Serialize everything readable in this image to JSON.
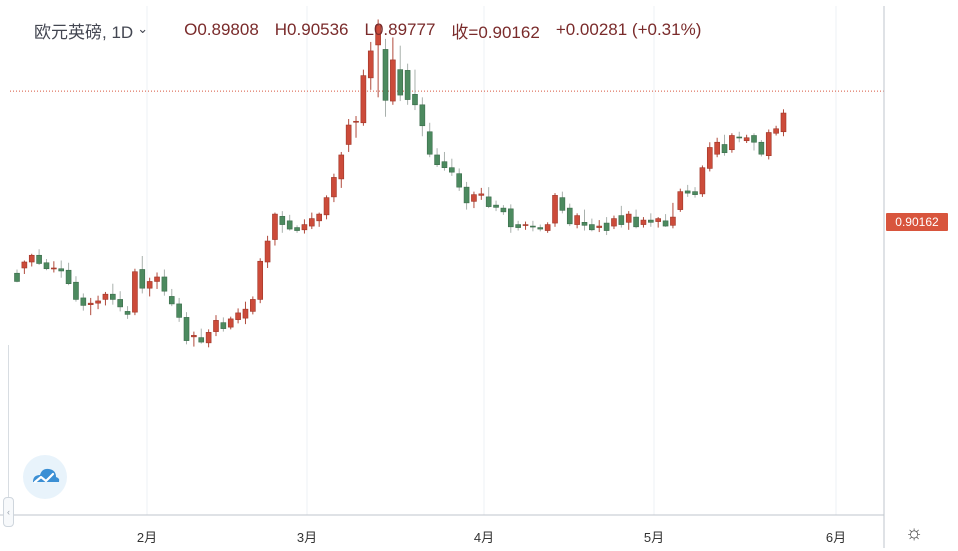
{
  "header": {
    "symbol": "欧元英磅, 1D",
    "open": "O0.89808",
    "high": "H0.90536",
    "low": "L0.89777",
    "close": "收=0.90162",
    "change": "+0.00281 (+0.31%)"
  },
  "price_label": "0.90162",
  "colors": {
    "up": "#cc4b3a",
    "down": "#4c8a5f",
    "grid": "#eef1f4",
    "price_line": "#d8553d",
    "tag": "#d8553d"
  },
  "icons": {
    "logo": "cloud-logo-icon",
    "settings": "gear-icon",
    "chevron": "chevron-down-icon",
    "handle": "chevron-left-icon"
  },
  "chart_data": {
    "type": "candlestick",
    "title": "欧元英磅, 1D",
    "xlabel": "",
    "ylabel": "",
    "x_ticks": [
      "2月",
      "3月",
      "4月",
      "5月",
      "6月"
    ],
    "ylim": [
      0.845,
      0.913
    ],
    "last_price": 0.90162,
    "candles": [
      [
        0.8773,
        0.8778,
        0.8761,
        0.8762
      ],
      [
        0.878,
        0.879,
        0.8772,
        0.8788
      ],
      [
        0.8788,
        0.8799,
        0.8782,
        0.8797
      ],
      [
        0.8797,
        0.8805,
        0.8784,
        0.8786
      ],
      [
        0.8787,
        0.8792,
        0.8777,
        0.8779
      ],
      [
        0.8779,
        0.8789,
        0.8774,
        0.878
      ],
      [
        0.8779,
        0.879,
        0.8767,
        0.8776
      ],
      [
        0.8777,
        0.8787,
        0.8757,
        0.8759
      ],
      [
        0.8761,
        0.8769,
        0.8735,
        0.8738
      ],
      [
        0.874,
        0.8746,
        0.8723,
        0.873
      ],
      [
        0.8731,
        0.874,
        0.8717,
        0.8733
      ],
      [
        0.8733,
        0.8743,
        0.8725,
        0.8736
      ],
      [
        0.8738,
        0.8748,
        0.873,
        0.8745
      ],
      [
        0.8745,
        0.8759,
        0.8731,
        0.8738
      ],
      [
        0.8738,
        0.8749,
        0.8722,
        0.8728
      ],
      [
        0.8722,
        0.8729,
        0.8712,
        0.8718
      ],
      [
        0.8721,
        0.8779,
        0.8717,
        0.8775
      ],
      [
        0.8778,
        0.8796,
        0.8746,
        0.8753
      ],
      [
        0.8753,
        0.8767,
        0.8742,
        0.8762
      ],
      [
        0.8762,
        0.8774,
        0.8752,
        0.8768
      ],
      [
        0.8768,
        0.8778,
        0.8743,
        0.8749
      ],
      [
        0.8742,
        0.8752,
        0.8729,
        0.8732
      ],
      [
        0.8732,
        0.874,
        0.8708,
        0.8714
      ],
      [
        0.8714,
        0.8721,
        0.8678,
        0.8683
      ],
      [
        0.8688,
        0.8695,
        0.8675,
        0.869
      ],
      [
        0.8687,
        0.8699,
        0.8679,
        0.8681
      ],
      [
        0.868,
        0.8698,
        0.8674,
        0.8694
      ],
      [
        0.8695,
        0.8717,
        0.8689,
        0.871
      ],
      [
        0.8707,
        0.8714,
        0.8695,
        0.8699
      ],
      [
        0.8701,
        0.8715,
        0.8698,
        0.8712
      ],
      [
        0.8711,
        0.8726,
        0.8706,
        0.872
      ],
      [
        0.8713,
        0.8735,
        0.8705,
        0.8725
      ],
      [
        0.8722,
        0.8742,
        0.8718,
        0.8738
      ],
      [
        0.8738,
        0.8793,
        0.8733,
        0.8789
      ],
      [
        0.8788,
        0.8823,
        0.878,
        0.8816
      ],
      [
        0.8818,
        0.8854,
        0.881,
        0.8852
      ],
      [
        0.8849,
        0.8856,
        0.8827,
        0.8838
      ],
      [
        0.8843,
        0.8851,
        0.883,
        0.8832
      ],
      [
        0.8834,
        0.8837,
        0.8827,
        0.883
      ],
      [
        0.8831,
        0.8845,
        0.8826,
        0.8838
      ],
      [
        0.8836,
        0.8854,
        0.8832,
        0.8846
      ],
      [
        0.8843,
        0.8854,
        0.8835,
        0.8852
      ],
      [
        0.8851,
        0.8877,
        0.8845,
        0.8874
      ],
      [
        0.8875,
        0.8906,
        0.8868,
        0.8901
      ],
      [
        0.8899,
        0.8935,
        0.8887,
        0.8931
      ],
      [
        0.8945,
        0.8979,
        0.8935,
        0.8971
      ],
      [
        0.8975,
        0.8983,
        0.8954,
        0.8976
      ],
      [
        0.8974,
        0.9045,
        0.897,
        0.9037
      ],
      [
        0.9034,
        0.9082,
        0.9018,
        0.907
      ],
      [
        0.9078,
        0.9112,
        0.9008,
        0.9104
      ],
      [
        0.9072,
        0.9086,
        0.8982,
        0.9004
      ],
      [
        0.9003,
        0.9088,
        0.8998,
        0.9058
      ],
      [
        0.9045,
        0.9077,
        0.9003,
        0.9011
      ],
      [
        0.9044,
        0.9053,
        0.8998,
        0.9005
      ],
      [
        0.9012,
        0.9045,
        0.8991,
        0.8998
      ],
      [
        0.8998,
        0.9008,
        0.8956,
        0.897
      ],
      [
        0.8962,
        0.8974,
        0.8928,
        0.8932
      ],
      [
        0.8931,
        0.894,
        0.8915,
        0.8918
      ],
      [
        0.8922,
        0.8935,
        0.891,
        0.8914
      ],
      [
        0.8914,
        0.8926,
        0.8903,
        0.8908
      ],
      [
        0.8906,
        0.8913,
        0.8883,
        0.8888
      ],
      [
        0.8888,
        0.8895,
        0.8858,
        0.8867
      ],
      [
        0.8869,
        0.8882,
        0.886,
        0.8878
      ],
      [
        0.8877,
        0.8887,
        0.8871,
        0.8879
      ],
      [
        0.8875,
        0.8888,
        0.886,
        0.8862
      ],
      [
        0.8864,
        0.887,
        0.8856,
        0.8861
      ],
      [
        0.886,
        0.8864,
        0.8851,
        0.8855
      ],
      [
        0.8859,
        0.8865,
        0.8827,
        0.8835
      ],
      [
        0.8838,
        0.8843,
        0.883,
        0.8834
      ],
      [
        0.8837,
        0.8842,
        0.8831,
        0.8838
      ],
      [
        0.8836,
        0.8843,
        0.8829,
        0.8835
      ],
      [
        0.8834,
        0.8838,
        0.8829,
        0.8832
      ],
      [
        0.883,
        0.8841,
        0.8827,
        0.8838
      ],
      [
        0.884,
        0.888,
        0.8835,
        0.8877
      ],
      [
        0.8874,
        0.8882,
        0.8853,
        0.8857
      ],
      [
        0.886,
        0.8866,
        0.8836,
        0.8839
      ],
      [
        0.8838,
        0.8853,
        0.8833,
        0.885
      ],
      [
        0.8841,
        0.8858,
        0.883,
        0.8837
      ],
      [
        0.8838,
        0.8846,
        0.8829,
        0.8831
      ],
      [
        0.8834,
        0.8844,
        0.8828,
        0.8836
      ],
      [
        0.884,
        0.8848,
        0.8824,
        0.883
      ],
      [
        0.8836,
        0.885,
        0.8832,
        0.8846
      ],
      [
        0.885,
        0.8863,
        0.8834,
        0.8838
      ],
      [
        0.8841,
        0.8856,
        0.8831,
        0.8852
      ],
      [
        0.8848,
        0.8858,
        0.8833,
        0.8835
      ],
      [
        0.8838,
        0.8848,
        0.8834,
        0.8844
      ],
      [
        0.8844,
        0.8853,
        0.8835,
        0.8841
      ],
      [
        0.8842,
        0.8848,
        0.8834,
        0.8846
      ],
      [
        0.8843,
        0.8852,
        0.8835,
        0.8836
      ],
      [
        0.8837,
        0.8867,
        0.8833,
        0.8848
      ],
      [
        0.8858,
        0.8886,
        0.8855,
        0.8882
      ],
      [
        0.8883,
        0.8891,
        0.8875,
        0.888
      ],
      [
        0.8882,
        0.8888,
        0.8874,
        0.8878
      ],
      [
        0.8879,
        0.8917,
        0.8875,
        0.8914
      ],
      [
        0.8913,
        0.8948,
        0.8909,
        0.8941
      ],
      [
        0.8932,
        0.8954,
        0.8928,
        0.8948
      ],
      [
        0.8945,
        0.8958,
        0.893,
        0.8934
      ],
      [
        0.8938,
        0.896,
        0.8934,
        0.8957
      ],
      [
        0.8955,
        0.8962,
        0.8948,
        0.8954
      ],
      [
        0.895,
        0.8958,
        0.8947,
        0.8954
      ],
      [
        0.8957,
        0.896,
        0.8937,
        0.8948
      ],
      [
        0.8948,
        0.8951,
        0.8929,
        0.8932
      ],
      [
        0.893,
        0.8965,
        0.8925,
        0.8961
      ],
      [
        0.896,
        0.897,
        0.8957,
        0.8966
      ],
      [
        0.8962,
        0.8992,
        0.8956,
        0.8987
      ]
    ]
  }
}
